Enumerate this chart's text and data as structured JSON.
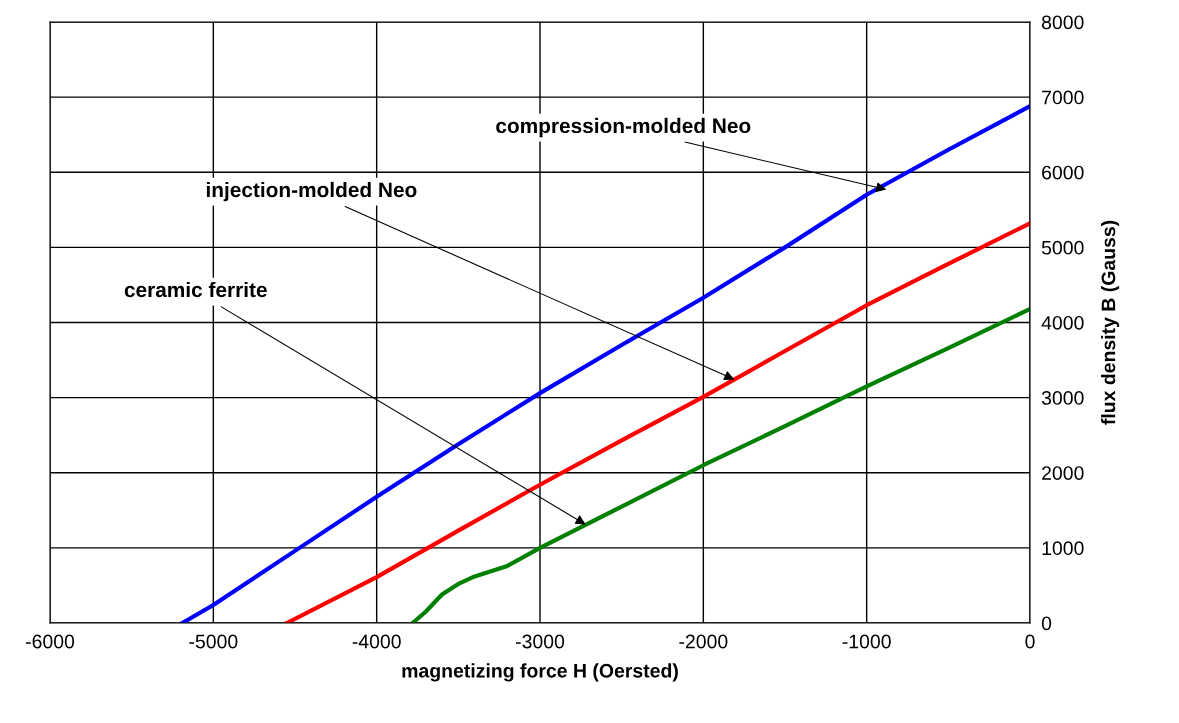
{
  "chart_data": {
    "type": "line",
    "xlabel": "magnetizing force H (Oersted)",
    "ylabel": "flux density B (Gauss)",
    "series": [
      {
        "color": "#0000ff",
        "x": [
          -5190,
          -5000,
          -4500,
          -4000,
          -3500,
          -3000,
          -2500,
          -2000,
          -1500,
          -1000,
          -500,
          0
        ],
        "values": [
          0,
          240,
          960,
          1680,
          2380,
          3060,
          3700,
          4330,
          5000,
          5700,
          6300,
          6880
        ]
      },
      {
        "color": "#ff0000",
        "x": [
          -4550,
          -4000,
          -3500,
          -3000,
          -2500,
          -2000,
          -1500,
          -1000,
          -500,
          0
        ],
        "values": [
          0,
          610,
          1230,
          1840,
          2430,
          3010,
          3620,
          4230,
          4780,
          5320
        ]
      },
      {
        "color": "#008000",
        "x": [
          -3780,
          -3700,
          -3600,
          -3500,
          -3400,
          -3200,
          -3000,
          -2500,
          -2000,
          -1500,
          -1000,
          -500,
          0
        ],
        "values": [
          0,
          150,
          380,
          520,
          620,
          760,
          1000,
          1550,
          2100,
          2620,
          3150,
          3660,
          4180
        ]
      }
    ],
    "xlim": [
      -6000,
      0
    ],
    "xticks": [
      -6000,
      -5000,
      -4000,
      -3000,
      -2000,
      -1000,
      0
    ],
    "ylim": [
      0,
      8000
    ],
    "yticks": [
      0,
      1000,
      2000,
      3000,
      4000,
      5000,
      6000,
      7000,
      8000
    ],
    "grid": true,
    "legend": false,
    "marker": "none",
    "line_style": "solid",
    "annotations": [
      {
        "text": "compression-molded Neo",
        "x": -880,
        "y": 5770
      },
      {
        "text": "injection-molded Neo",
        "x": -1810,
        "y": 3240
      },
      {
        "text": "ceramic ferrite",
        "x": -2720,
        "y": 1310
      }
    ]
  }
}
